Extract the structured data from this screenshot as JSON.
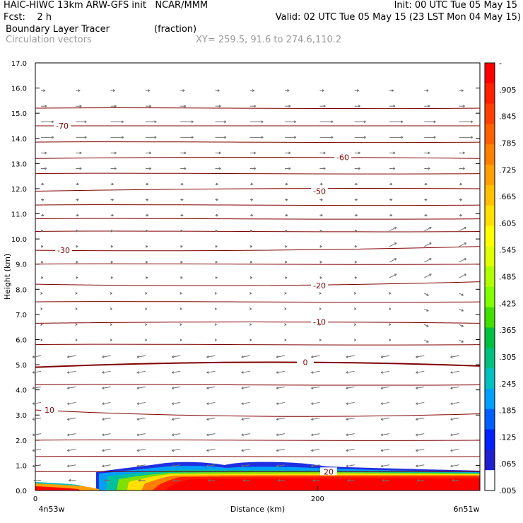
{
  "header": {
    "line1_left": "HAIC-HIWC 13km ARW-GFS init   NCAR/MMM",
    "line1_right": "Init: 00 UTC Tue 05 May 15",
    "line2_left": "Fcst:    2 h",
    "line2_right": "Valid: 02 UTC Tue 05 May 15 (23 LST Mon 04 May 15)",
    "line3_left": "Boundary Layer Tracer",
    "line3_units": "(fraction)",
    "line4_left": "Circulation vectors",
    "line4_xy": "XY= 259.5, 91.6 to 274.6,110.2"
  },
  "chart_data": {
    "type": "heatmap",
    "title": "Boundary Layer Tracer",
    "ylabel": "Height (km)",
    "xlabel": "Distance (km)",
    "x_left_label": "4n53w",
    "x_right_label": "6n51w",
    "x_tick_labels": [
      "0",
      "200"
    ],
    "x_ticks": [
      0,
      200
    ],
    "xlim": [
      0,
      315
    ],
    "ylim": [
      0,
      17
    ],
    "y_ticks": [
      0.0,
      1.0,
      2.0,
      3.0,
      4.0,
      5.0,
      6.0,
      7.0,
      8.0,
      9.0,
      10.0,
      11.0,
      12.0,
      13.0,
      14.0,
      15.0,
      16.0,
      17.0
    ],
    "y_tick_labels": [
      "0.0",
      "1.0",
      "2.0",
      "3.0",
      "4.0",
      "5.0",
      "6.0",
      "7.0",
      "8.0",
      "9.0",
      "10.0",
      "11.0",
      "12.0",
      "13.0",
      "14.0",
      "15.0",
      "16.0",
      "17.0"
    ],
    "colorbar": {
      "labels": [
        "-",
        ".905",
        ".845",
        ".785",
        ".725",
        ".665",
        ".605",
        ".545",
        ".485",
        ".425",
        ".365",
        ".305",
        ".245",
        ".185",
        ".125",
        ".065",
        ".005"
      ],
      "colors": [
        "#ff0000",
        "#ff2000",
        "#ff4000",
        "#ff6000",
        "#ff8000",
        "#ffa000",
        "#ffc000",
        "#ffe000",
        "#ffff00",
        "#e0ff00",
        "#b0ff00",
        "#80ff00",
        "#40e000",
        "#00c040",
        "#00c080",
        "#00c0c0",
        "#00a0ff",
        "#0060ff",
        "#0020ff",
        "#2020d0",
        "#ffffff"
      ]
    },
    "temperature_contours": [
      {
        "label": "-70",
        "heights_km": [
          14.5,
          14.5,
          14.5
        ]
      },
      {
        "label": "-60",
        "heights_km": [
          13.2,
          13.25,
          13.2
        ]
      },
      {
        "label": "-50",
        "heights_km": [
          11.9,
          12.0,
          12.0
        ]
      },
      {
        "label": "-30",
        "heights_km": [
          9.55,
          9.55,
          9.7
        ]
      },
      {
        "label": "-20",
        "heights_km": [
          8.2,
          8.15,
          8.3
        ]
      },
      {
        "label": "-10",
        "heights_km": [
          6.65,
          6.7,
          6.65
        ]
      },
      {
        "label": "0",
        "heights_km": [
          4.9,
          5.1,
          4.95
        ]
      },
      {
        "label": "10",
        "heights_km": [
          3.2,
          2.95,
          3.05
        ]
      },
      {
        "label": "20",
        "heights_km": [
          0.75,
          0.75,
          0.75
        ]
      }
    ]
  }
}
